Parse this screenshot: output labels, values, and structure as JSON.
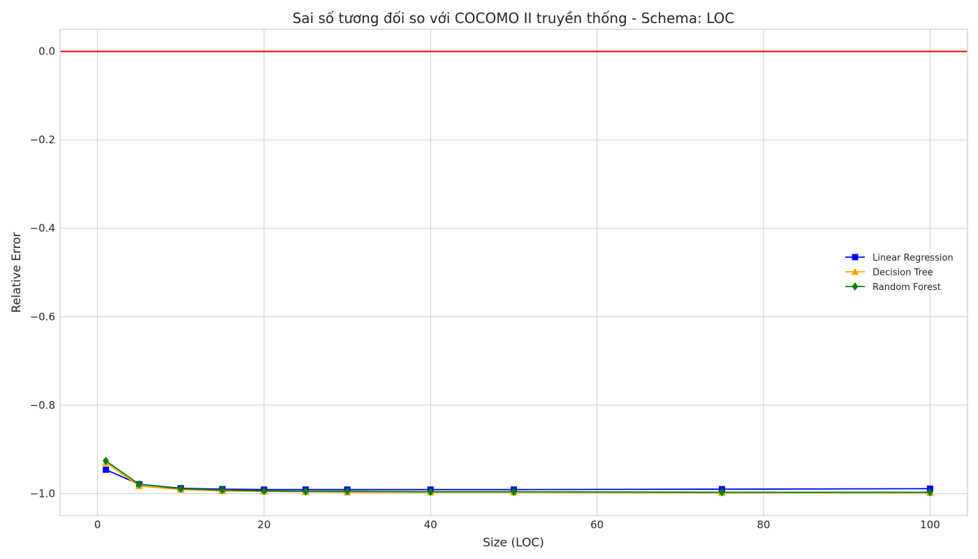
{
  "chart_data": {
    "type": "line",
    "title": "Sai số tương đối so với COCOMO II truyền thống - Schema: LOC",
    "xlabel": "Size (LOC)",
    "ylabel": "Relative Error",
    "xlim": [
      -4.5,
      104.5
    ],
    "ylim": [
      -1.05,
      0.05
    ],
    "xticks": [
      0,
      20,
      40,
      60,
      80,
      100
    ],
    "xtick_labels": [
      "0",
      "20",
      "40",
      "60",
      "80",
      "100"
    ],
    "yticks": [
      0.0,
      -0.2,
      -0.4,
      -0.6,
      -0.8,
      -1.0
    ],
    "ytick_labels": [
      "0.0",
      "−0.2",
      "−0.4",
      "−0.6",
      "−0.8",
      "−1.0"
    ],
    "grid": true,
    "legend_position": "center-right",
    "reference_line": {
      "y": 0.0,
      "color": "#ff0000"
    },
    "x": [
      1,
      5,
      10,
      15,
      20,
      25,
      30,
      40,
      50,
      75,
      100
    ],
    "series": [
      {
        "name": "Linear Regression",
        "color": "#0000ff",
        "marker": "square",
        "values": [
          -0.946,
          -0.979,
          -0.988,
          -0.99,
          -0.991,
          -0.991,
          -0.991,
          -0.991,
          -0.991,
          -0.99,
          -0.989
        ]
      },
      {
        "name": "Decision Tree",
        "color": "#ffa500",
        "marker": "triangle-up",
        "values": [
          -0.93,
          -0.983,
          -0.991,
          -0.994,
          -0.995,
          -0.996,
          -0.997,
          -0.997,
          -0.997,
          -0.998,
          -0.998
        ]
      },
      {
        "name": "Random Forest",
        "color": "#008000",
        "marker": "diamond",
        "values": [
          -0.926,
          -0.979,
          -0.989,
          -0.992,
          -0.994,
          -0.995,
          -0.995,
          -0.996,
          -0.996,
          -0.997,
          -0.997
        ]
      }
    ]
  }
}
